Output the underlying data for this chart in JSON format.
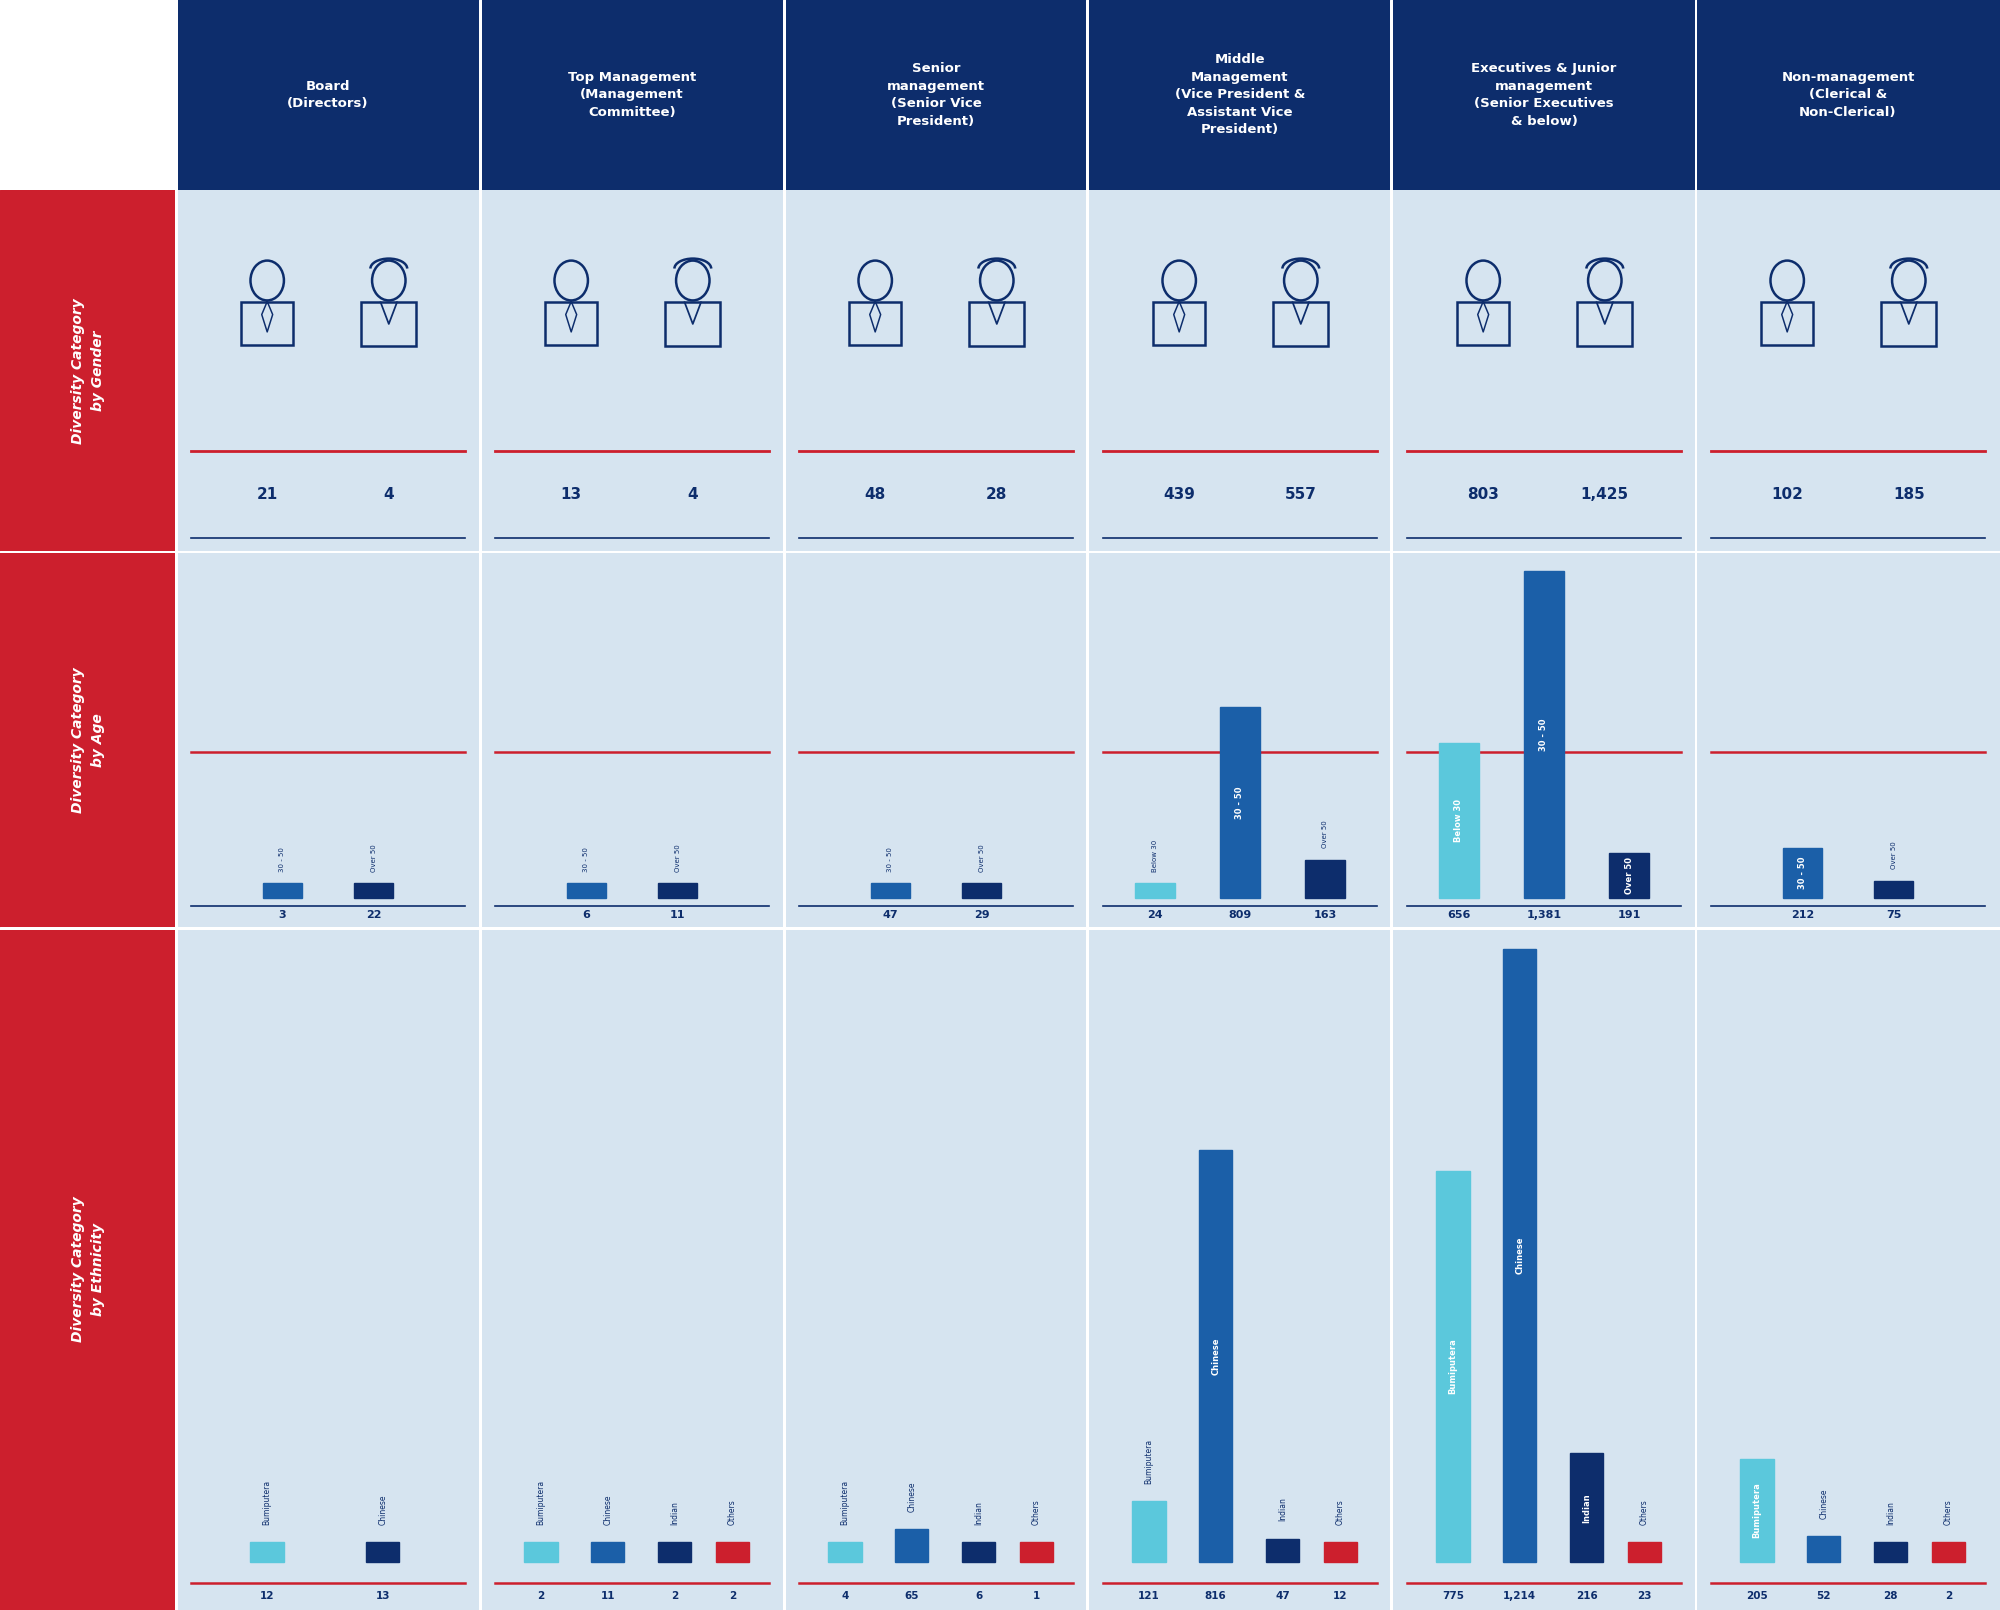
{
  "col_headers": [
    "Board\n(Directors)",
    "Top Management\n(Management\nCommittee)",
    "Senior\nmanagement\n(Senior Vice\nPresident)",
    "Middle\nManagement\n(Vice President &\nAssistant Vice\nPresident)",
    "Executives & Junior\nmanagement\n(Senior Executives\n& below)",
    "Non-management\n(Clerical &\nNon-Clerical)"
  ],
  "row_headers": [
    "Diversity Category\nby Gender",
    "Diversity Category\nby Age",
    "Diversity Category\nby Ethnicity"
  ],
  "gender": {
    "male": [
      21,
      13,
      48,
      439,
      803,
      102
    ],
    "female": [
      4,
      4,
      28,
      557,
      1425,
      185
    ]
  },
  "age": {
    "below30": [
      null,
      null,
      null,
      24,
      656,
      null
    ],
    "age30_50": [
      3,
      6,
      47,
      809,
      1381,
      212
    ],
    "over50": [
      22,
      11,
      29,
      163,
      191,
      75
    ]
  },
  "ethnicity": {
    "bumiputera": [
      12,
      2,
      4,
      121,
      775,
      205
    ],
    "chinese": [
      13,
      11,
      65,
      816,
      1214,
      52
    ],
    "indian": [
      null,
      2,
      6,
      47,
      216,
      28
    ],
    "others": [
      null,
      2,
      1,
      12,
      23,
      2
    ]
  },
  "colors": {
    "header_bg": "#0d2d6c",
    "row_header_bg": "#cc1f2d",
    "cell_bg": "#d6e4f0",
    "light_blue_bar": "#5bc8dc",
    "medium_blue_bar": "#1b5fa8",
    "dark_blue_bar": "#0d2d6c",
    "red_bar": "#cc1f2d",
    "divider_red": "#cc1f2d",
    "divider_dark": "#0d2d6c",
    "text_white": "#ffffff",
    "text_dark": "#0d2d6c",
    "icon_color": "#0d2d6c"
  }
}
